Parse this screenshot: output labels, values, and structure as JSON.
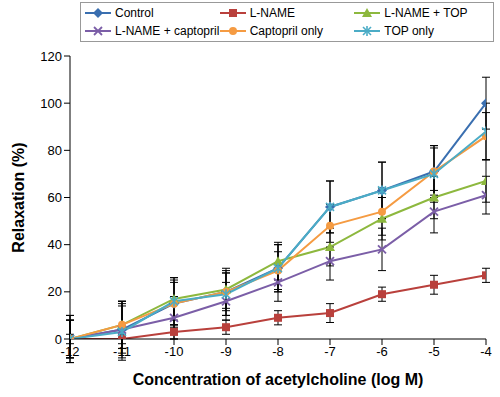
{
  "chart_data": {
    "type": "line",
    "x_label": "Concentration of acetylcholine (log M)",
    "y_label": "Relaxation (%)",
    "x": [
      -12,
      -11,
      -10,
      -9,
      -8,
      -7,
      -6,
      -5,
      -4
    ],
    "xlim": [
      -12,
      -4
    ],
    "xticks": [
      -12,
      -11,
      -10,
      -9,
      -8,
      -7,
      -6,
      -5,
      -4
    ],
    "ylim": [
      0,
      120
    ],
    "yticks": [
      0,
      20,
      40,
      60,
      80,
      100,
      120
    ],
    "grid": false,
    "legend": "top",
    "series": [
      {
        "name": "Control",
        "color": "#3a6fb0",
        "marker": "diamond",
        "values": [
          0,
          4,
          15,
          20,
          30,
          56,
          63,
          71,
          100
        ],
        "errors": [
          10,
          12,
          10,
          10,
          10,
          11,
          12,
          11,
          11
        ]
      },
      {
        "name": "L-NAME",
        "color": "#b9403c",
        "marker": "square",
        "values": [
          0,
          0,
          3,
          5,
          9,
          11,
          19,
          23,
          27
        ],
        "errors": [
          2,
          2,
          3,
          3,
          3,
          4,
          3,
          4,
          3
        ]
      },
      {
        "name": "L-NAME + TOP",
        "color": "#8db83e",
        "marker": "triangle",
        "values": [
          0,
          6,
          17,
          21,
          33,
          39,
          51,
          60,
          67
        ],
        "errors": [
          8,
          10,
          9,
          8,
          8,
          8,
          9,
          9,
          9
        ]
      },
      {
        "name": "L-NAME + captopril",
        "color": "#7b5ea7",
        "marker": "x",
        "values": [
          0,
          4,
          9,
          16,
          24,
          33,
          38,
          54,
          61
        ],
        "errors": [
          8,
          10,
          9,
          8,
          8,
          8,
          9,
          9,
          8
        ]
      },
      {
        "name": "Captopril only",
        "color": "#f59b42",
        "marker": "circle",
        "values": [
          0,
          6,
          15,
          20,
          29,
          48,
          54,
          71,
          86
        ],
        "errors": [
          8,
          10,
          9,
          8,
          8,
          9,
          10,
          10,
          10
        ]
      },
      {
        "name": "TOP only",
        "color": "#4bacc6",
        "marker": "star",
        "values": [
          0,
          3,
          16,
          19,
          30,
          56,
          63,
          70,
          88
        ],
        "errors": [
          10,
          12,
          10,
          9,
          10,
          11,
          12,
          12,
          12
        ]
      }
    ]
  }
}
